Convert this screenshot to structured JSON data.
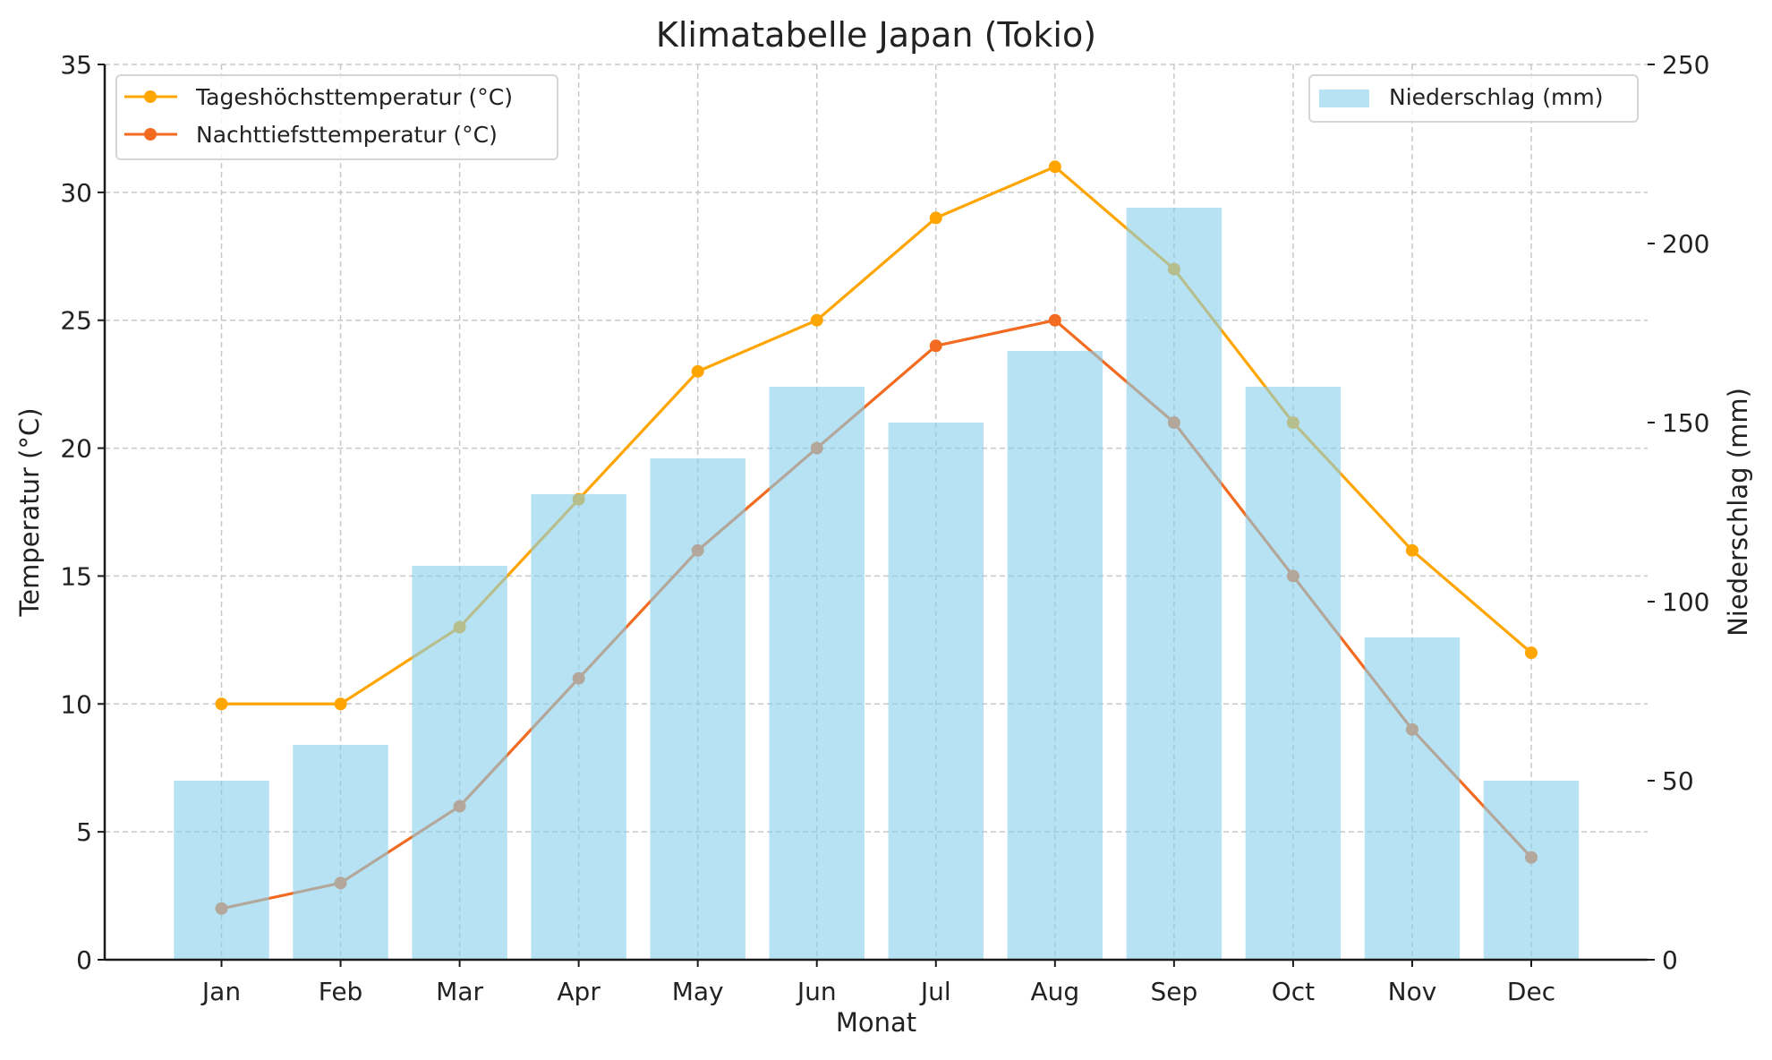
{
  "chart_data": {
    "type": "bar+line",
    "title": "Klimatabelle Japan (Tokio)",
    "xlabel": "Monat",
    "ylabel": "Temperatur (°C)",
    "y2label": "Niederschlag (mm)",
    "categories": [
      "Jan",
      "Feb",
      "Mar",
      "Apr",
      "May",
      "Jun",
      "Jul",
      "Aug",
      "Sep",
      "Oct",
      "Nov",
      "Dec"
    ],
    "ylim": [
      0,
      35
    ],
    "y2lim": [
      0,
      250
    ],
    "yticks": [
      0,
      5,
      10,
      15,
      20,
      25,
      30,
      35
    ],
    "y2ticks": [
      0,
      50,
      100,
      150,
      200,
      250
    ],
    "grid": true,
    "series": [
      {
        "name": "Tageshöchsttemperatur (°C)",
        "type": "line",
        "axis": "left",
        "color": "#FFA500",
        "values": [
          10,
          10,
          13,
          18,
          23,
          25,
          29,
          31,
          27,
          21,
          16,
          12
        ]
      },
      {
        "name": "Nachttiefsttemperatur (°C)",
        "type": "line",
        "axis": "left",
        "color": "#F26B21",
        "values": [
          2,
          3,
          6,
          11,
          16,
          20,
          24,
          25,
          21,
          15,
          9,
          4
        ]
      },
      {
        "name": "Niederschlag (mm)",
        "type": "bar",
        "axis": "right",
        "color": "#87CEEB",
        "values": [
          50,
          60,
          110,
          130,
          140,
          160,
          150,
          170,
          210,
          160,
          90,
          50
        ]
      }
    ],
    "legend_left": "upper-left",
    "legend_right": "upper-right"
  }
}
